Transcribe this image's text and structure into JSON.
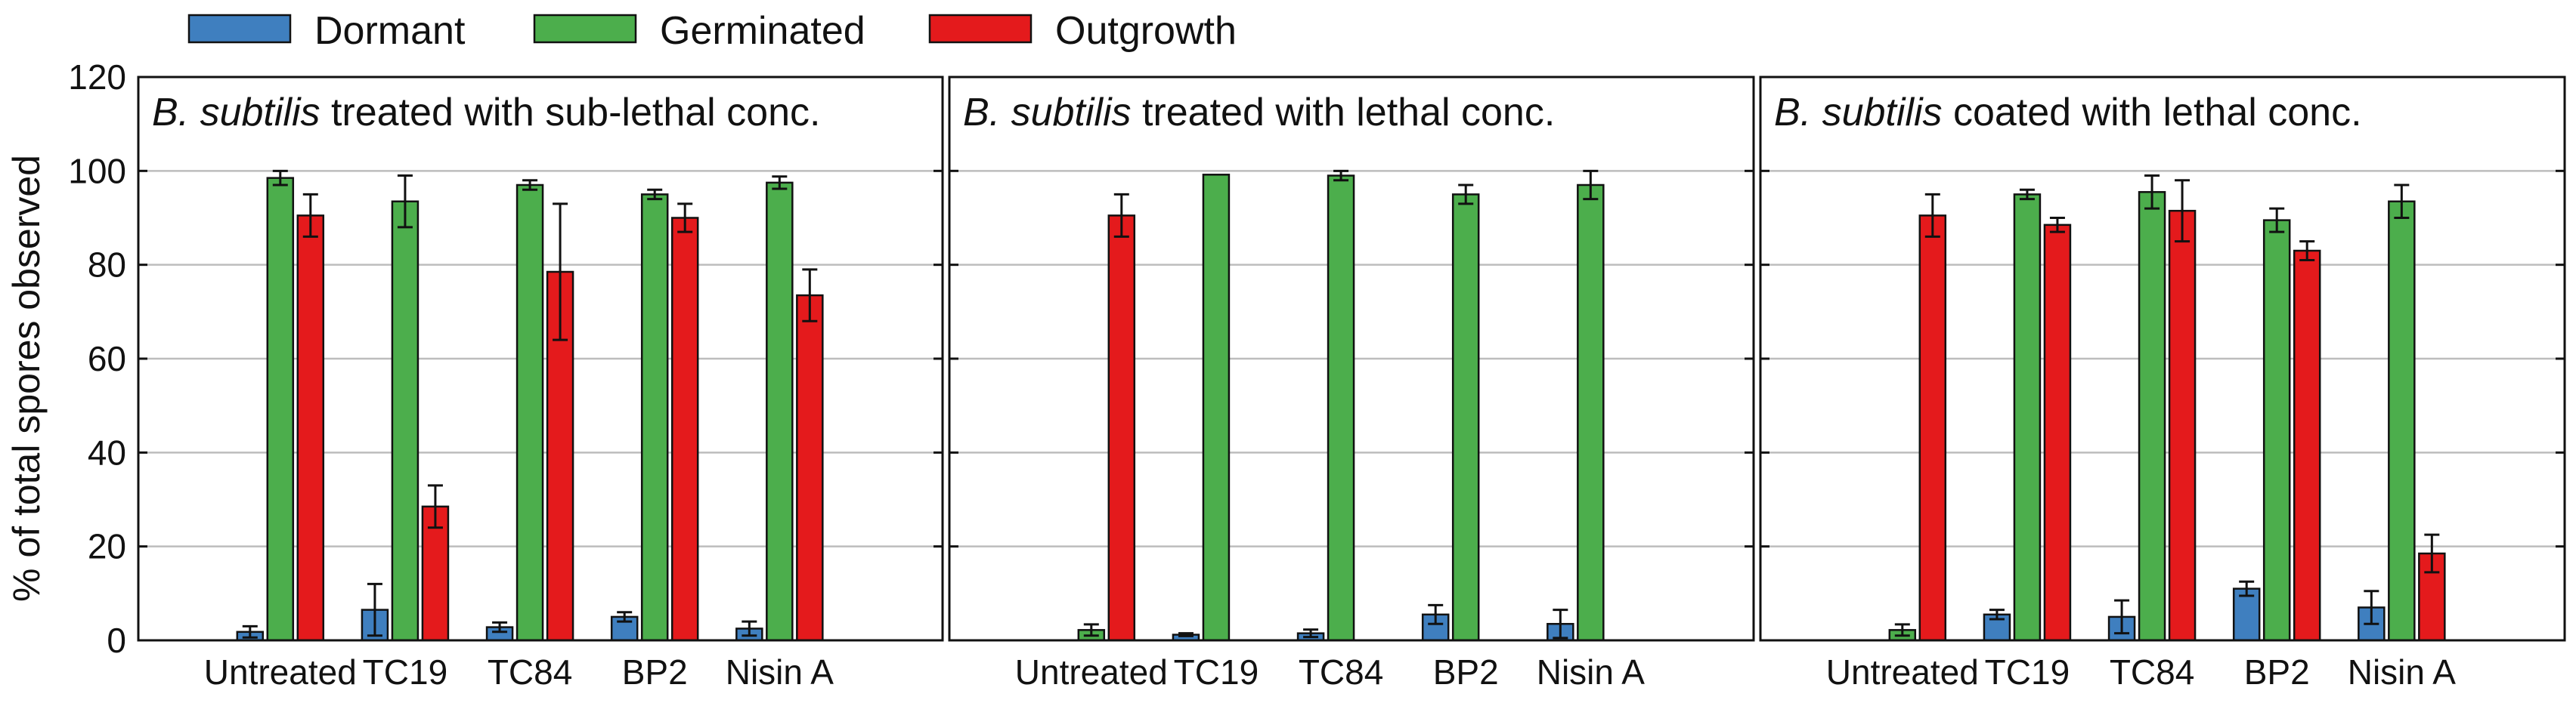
{
  "chart_data": {
    "type": "bar",
    "ylabel": "% of total spores observed",
    "ylim": [
      0,
      120
    ],
    "yticks": [
      0,
      20,
      40,
      60,
      80,
      100,
      120
    ],
    "categories": [
      "Untreated",
      "TC19",
      "TC84",
      "BP2",
      "Nisin A"
    ],
    "legend": [
      {
        "name": "Dormant",
        "color": "#3f7fbf"
      },
      {
        "name": "Germinated",
        "color": "#4cae4c"
      },
      {
        "name": "Outgrowth",
        "color": "#e41a1c"
      }
    ],
    "panels": [
      {
        "title_italic": "B. subtilis",
        "title_rest": " treated with sub-lethal conc.",
        "series": [
          {
            "name": "Dormant",
            "values": [
              1.8,
              6.5,
              2.8,
              5.0,
              2.5
            ],
            "errors": [
              1.2,
              5.5,
              1.0,
              1.0,
              1.5
            ]
          },
          {
            "name": "Germinated",
            "values": [
              98.5,
              93.5,
              97.0,
              95.0,
              97.5
            ],
            "errors": [
              1.5,
              5.5,
              1.0,
              1.0,
              1.3
            ]
          },
          {
            "name": "Outgrowth",
            "values": [
              90.5,
              28.5,
              78.5,
              90.0,
              73.5
            ],
            "errors": [
              4.5,
              4.5,
              14.5,
              3.0,
              5.5
            ]
          }
        ]
      },
      {
        "title_italic": "B. subtilis",
        "title_rest": " treated with lethal conc.",
        "series": [
          {
            "name": "Dormant",
            "values": [
              0,
              1.2,
              1.5,
              5.5,
              3.5
            ],
            "errors": [
              0,
              0.3,
              0.8,
              2.0,
              3.0
            ]
          },
          {
            "name": "Germinated",
            "values": [
              2.2,
              99.2,
              99.0,
              95.0,
              97.0
            ],
            "errors": [
              1.2,
              0,
              1.0,
              2.0,
              3.0
            ]
          },
          {
            "name": "Outgrowth",
            "values": [
              90.5,
              0,
              0,
              0,
              0
            ],
            "errors": [
              4.5,
              0,
              0,
              0,
              0
            ]
          }
        ]
      },
      {
        "title_italic": "B. subtilis",
        "title_rest": " coated with lethal conc.",
        "series": [
          {
            "name": "Dormant",
            "values": [
              0,
              5.5,
              5.0,
              11.0,
              7.0
            ],
            "errors": [
              0,
              1.0,
              3.5,
              1.5,
              3.5
            ]
          },
          {
            "name": "Germinated",
            "values": [
              2.2,
              95.0,
              95.5,
              89.5,
              93.5
            ],
            "errors": [
              1.2,
              1.0,
              3.5,
              2.5,
              3.5
            ]
          },
          {
            "name": "Outgrowth",
            "values": [
              90.5,
              88.5,
              91.5,
              83.0,
              18.5
            ],
            "errors": [
              4.5,
              1.5,
              6.5,
              2.0,
              4.0
            ]
          }
        ]
      }
    ]
  }
}
